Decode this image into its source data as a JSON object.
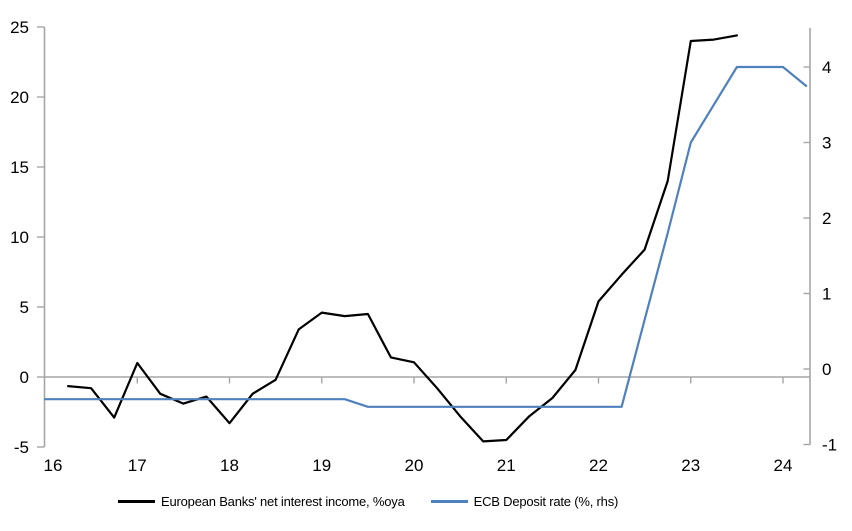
{
  "chart_data": {
    "type": "line",
    "title": "",
    "legend_position": "bottom",
    "grid": "zero line only",
    "x_axis": {
      "tick_labels": [
        "16",
        "17",
        "18",
        "19",
        "20",
        "21",
        "22",
        "23",
        "24"
      ],
      "tick_values": [
        16,
        17,
        18,
        19,
        20,
        21,
        22,
        23,
        24
      ],
      "range": [
        16,
        24.3
      ]
    },
    "y_axis_left": {
      "tick_labels": [
        "-5",
        "0",
        "5",
        "10",
        "15",
        "20",
        "25"
      ],
      "tick_values": [
        -5,
        0,
        5,
        10,
        15,
        20,
        25
      ],
      "range": [
        -5,
        25
      ]
    },
    "y_axis_right": {
      "tick_labels": [
        "-1",
        "0",
        "1",
        "2",
        "3",
        "4"
      ],
      "tick_values": [
        -1,
        0,
        1,
        2,
        3,
        4
      ],
      "range": [
        -1,
        4.5
      ]
    },
    "series": [
      {
        "name": "European Banks' net interest income, %oya",
        "axis": "left",
        "color": "#000000",
        "x": [
          16.25,
          16.5,
          16.75,
          17.0,
          17.25,
          17.5,
          17.75,
          18.0,
          18.25,
          18.5,
          18.75,
          19.0,
          19.25,
          19.5,
          19.75,
          20.0,
          20.25,
          20.5,
          20.75,
          21.0,
          21.25,
          21.5,
          21.75,
          22.0,
          22.25,
          22.5,
          22.75,
          23.0,
          23.25,
          23.5
        ],
        "values": [
          -0.65,
          -0.8,
          -2.9,
          1.0,
          -1.2,
          -1.9,
          -1.4,
          -3.3,
          -1.2,
          -0.2,
          3.4,
          4.6,
          4.35,
          4.5,
          1.4,
          1.05,
          -0.8,
          -2.8,
          -4.6,
          -4.5,
          -2.8,
          -1.5,
          0.5,
          5.4,
          7.3,
          9.1,
          14.0,
          24.0,
          24.1,
          24.4
        ]
      },
      {
        "name": "ECB Deposit rate (%, rhs)",
        "axis": "right",
        "color": "#4e81bd",
        "x": [
          16.0,
          16.25,
          16.5,
          16.75,
          17.0,
          17.25,
          17.5,
          17.75,
          18.0,
          18.25,
          18.5,
          18.75,
          19.0,
          19.25,
          19.5,
          19.75,
          20.0,
          20.25,
          20.5,
          20.75,
          21.0,
          21.25,
          21.5,
          21.75,
          22.0,
          22.25,
          22.5,
          22.75,
          23.0,
          23.25,
          23.5,
          23.75,
          24.0,
          24.25
        ],
        "values": [
          -0.4,
          -0.4,
          -0.4,
          -0.4,
          -0.4,
          -0.4,
          -0.4,
          -0.4,
          -0.4,
          -0.4,
          -0.4,
          -0.4,
          -0.4,
          -0.4,
          -0.5,
          -0.5,
          -0.5,
          -0.5,
          -0.5,
          -0.5,
          -0.5,
          -0.5,
          -0.5,
          -0.5,
          -0.5,
          -0.5,
          0.65,
          1.8,
          3.0,
          3.5,
          4.0,
          4.0,
          4.0,
          3.75
        ]
      }
    ],
    "axis_color": "#a6a6a6",
    "text_color": "#000000"
  }
}
